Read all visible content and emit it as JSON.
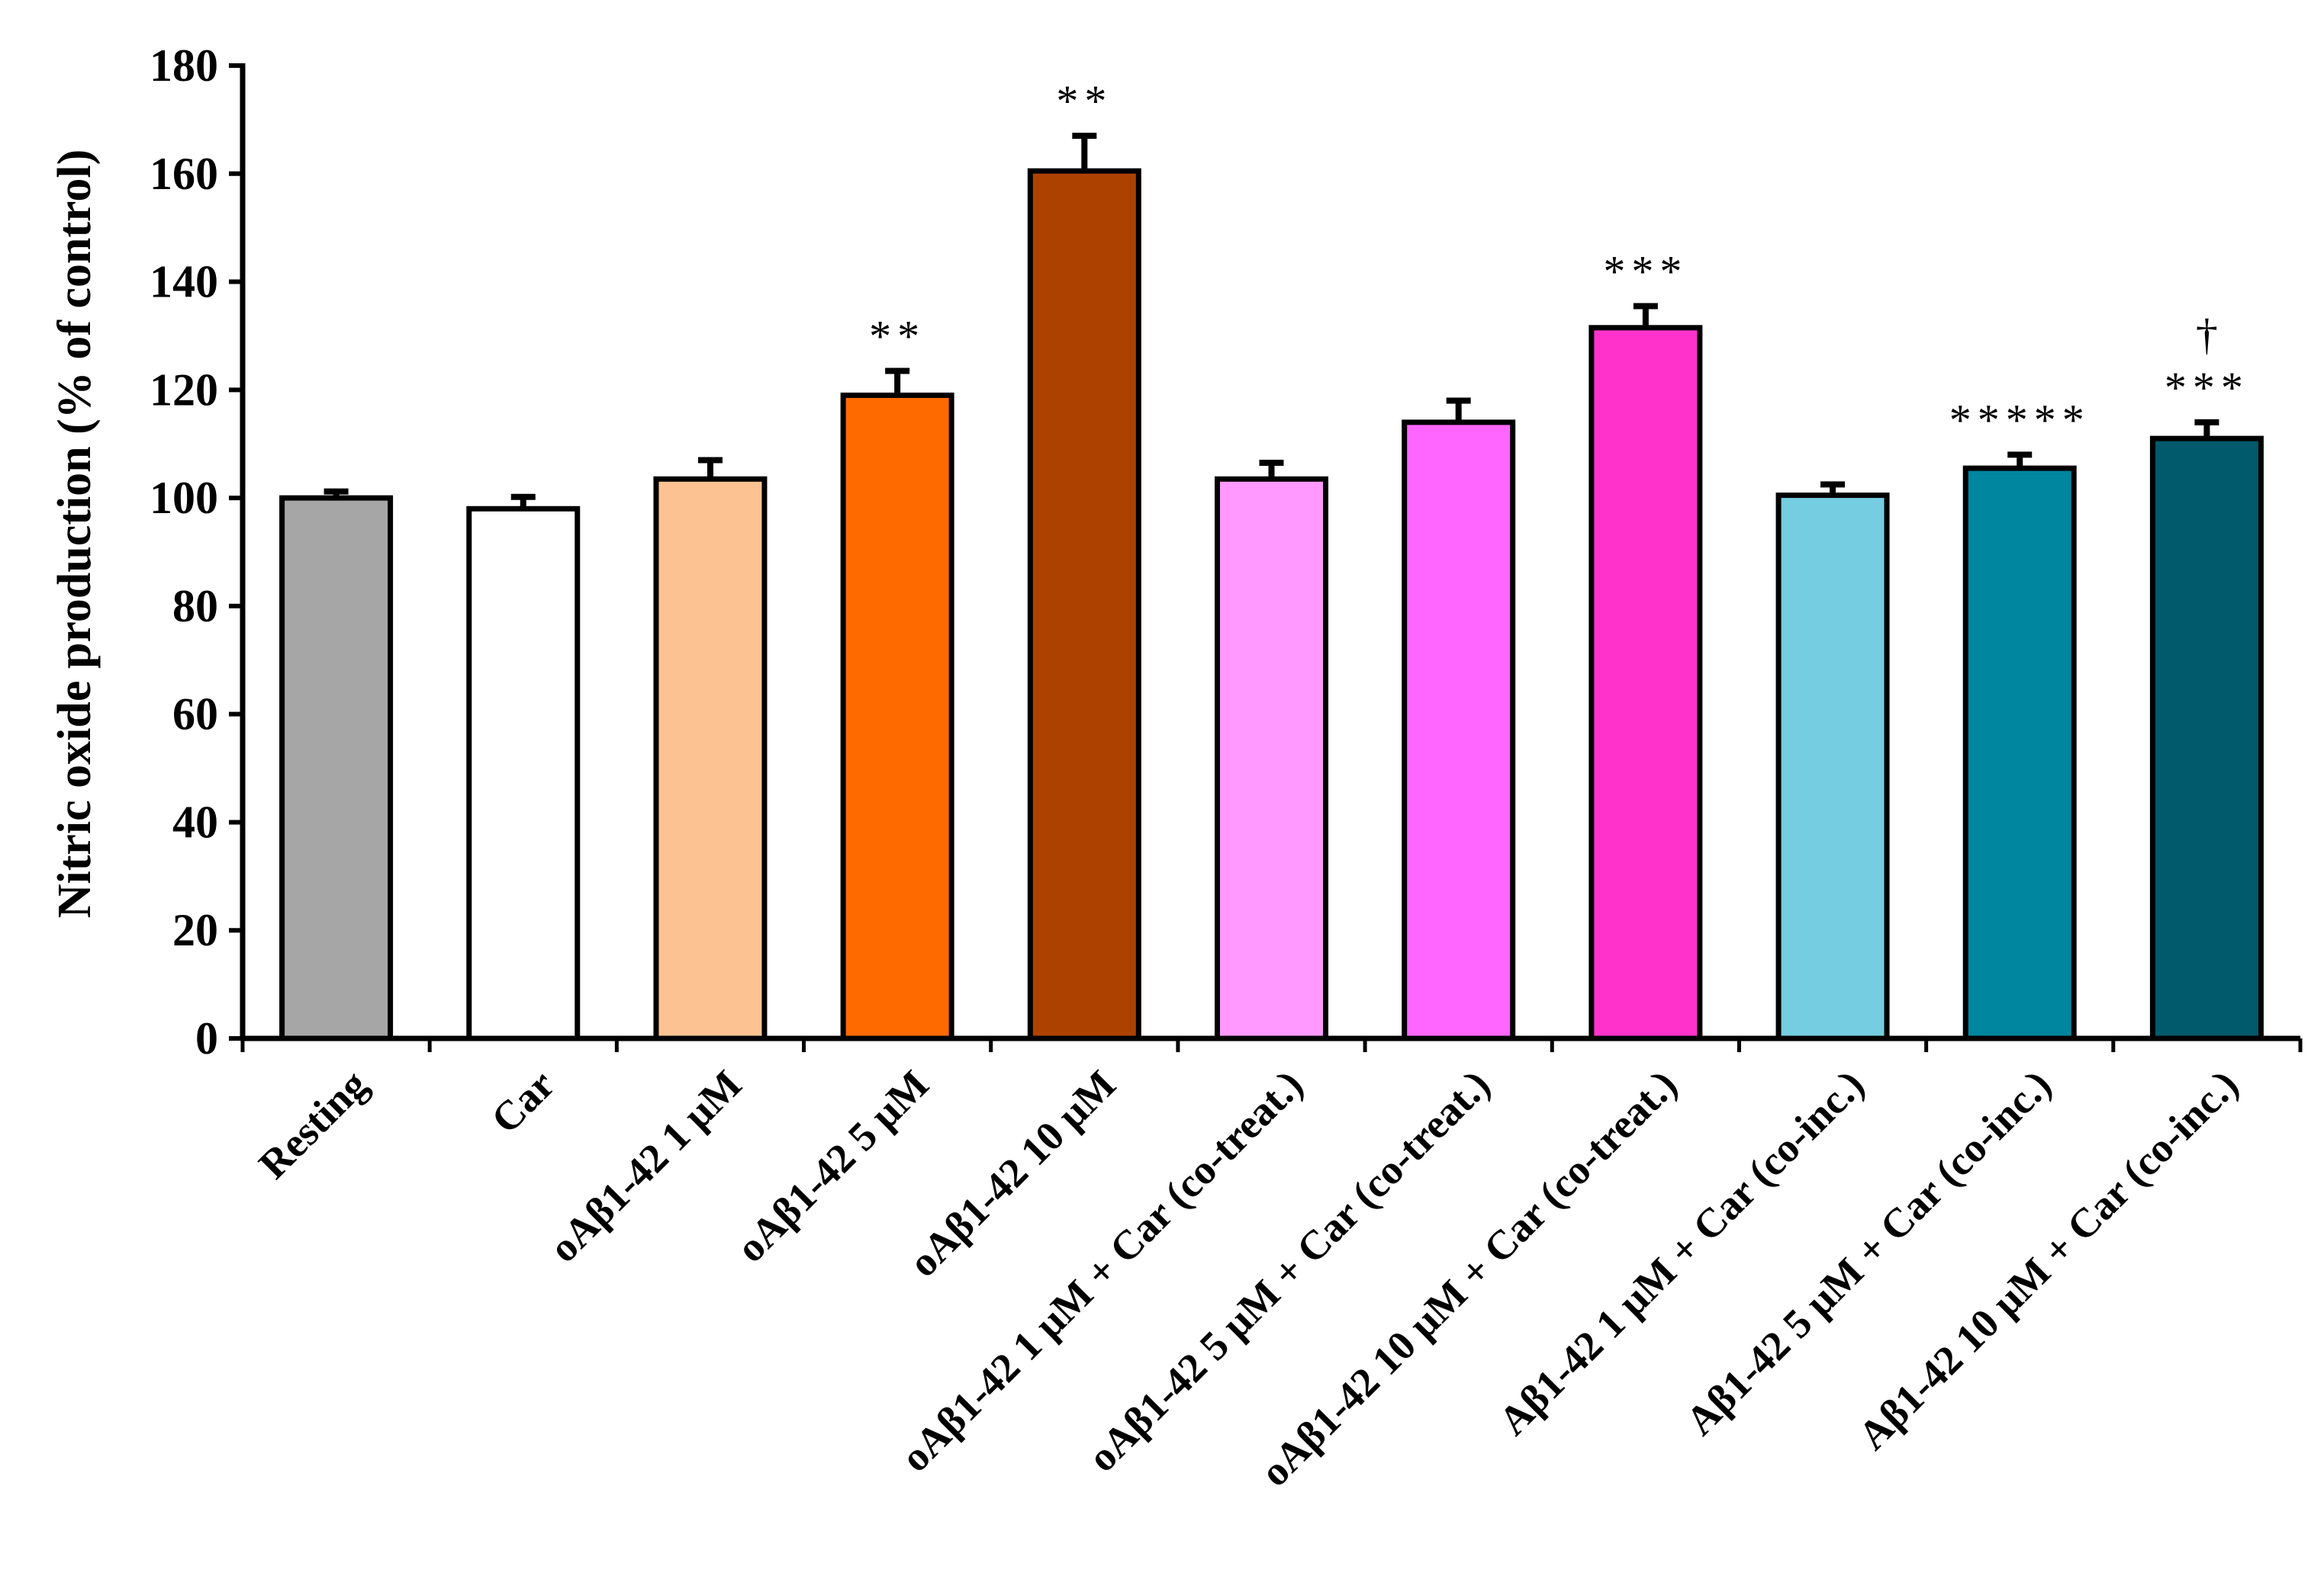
{
  "chart_data": {
    "type": "bar",
    "title": "",
    "xlabel": "",
    "ylabel": "Nitric oxide production (% of control)",
    "ylim": [
      0,
      180
    ],
    "yticks": [
      0,
      20,
      40,
      60,
      80,
      100,
      120,
      140,
      160,
      180
    ],
    "grid": false,
    "legend": "none",
    "categories": [
      "Resting",
      "Car",
      "oAβ1-42 1 μM",
      "oAβ1-42 5 μM",
      "oAβ1-42 10 μM",
      "oAβ1-42 1 μM + Car (co-treat.)",
      "oAβ1-42 5 μM + Car (co-treat.)",
      "oAβ1-42 10 μM + Car (co-treat.)",
      "Aβ1-42 1 μM + Car (co-inc.)",
      "Aβ1-42 5 μM + Car (co-inc.)",
      "Aβ1-42 10 μM + Car (co-inc.)"
    ],
    "values": [
      100,
      98,
      103.5,
      119,
      160.5,
      103.5,
      114,
      131.5,
      100.5,
      105.5,
      111
    ],
    "errors": [
      1.2,
      2.2,
      3.5,
      4.5,
      6.5,
      3.0,
      4.0,
      4.0,
      2.0,
      2.5,
      3.0
    ],
    "colors": [
      "#a6a6a6",
      "#ffffff",
      "#fcc291",
      "#ff6a00",
      "#ad4200",
      "#ff99ff",
      "#ff66ff",
      "#ff33cc",
      "#74cde0",
      "#00869e",
      "#005a6b"
    ],
    "annotations": [
      "",
      "",
      "",
      "**",
      "**",
      "",
      "",
      "***",
      "",
      "*****",
      "***"
    ],
    "annotations_top": [
      "",
      "",
      "",
      "",
      "",
      "",
      "",
      "",
      "",
      "",
      "†"
    ]
  }
}
